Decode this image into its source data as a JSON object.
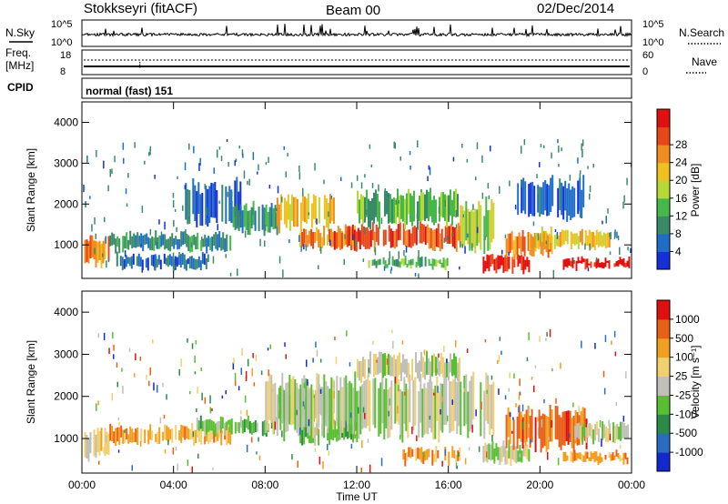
{
  "header": {
    "station": "Stokkseyri (fitACF)",
    "beam": "Beam 00",
    "date": "02/Dec/2014"
  },
  "sky_panel": {
    "left_label": "N.Sky",
    "ytick_top": "10^5",
    "ytick_bottom": "10^0",
    "right_tick_top": "10^5",
    "right_tick_bottom": "10^0",
    "right_label": "N.Search"
  },
  "freq_panel": {
    "left_label_line1": "Freq.",
    "left_label_line2": "[MHz]",
    "ytick_top": "18",
    "ytick_bottom": "8",
    "right_tick_top": "60",
    "right_tick_bottom": "0",
    "right_label": "Nave"
  },
  "cpid_panel": {
    "left_label": "CPID",
    "program": "normal (fast) 151"
  },
  "chart_data": [
    {
      "type": "heatmap",
      "panel": "power",
      "ylabel": "Slant Range [km]",
      "xlabel": "",
      "x_range_hours": [
        0,
        24
      ],
      "y_range_km": [
        180,
        4500
      ],
      "yticks": [
        "1000",
        "2000",
        "3000",
        "4000"
      ],
      "colorbar": {
        "label": "Power [dB]",
        "ticks": [
          "4",
          "8",
          "12",
          "16",
          "20",
          "24",
          "28"
        ],
        "colors": [
          "#1430d8",
          "#1e6ec8",
          "#3a8a6a",
          "#46b84a",
          "#b8d838",
          "#f0c020",
          "#f08c20",
          "#e84818",
          "#e01010"
        ]
      },
      "bands": [
        {
          "t0": 0.1,
          "t1": 1.2,
          "r0": 500,
          "r1": 1200,
          "level": 6
        },
        {
          "t0": 1.2,
          "t1": 6.5,
          "r0": 850,
          "r1": 1300,
          "level": 2
        },
        {
          "t0": 1.5,
          "t1": 5.5,
          "r0": 400,
          "r1": 800,
          "level": 1
        },
        {
          "t0": 4.5,
          "t1": 7.0,
          "r0": 1500,
          "r1": 2500,
          "level": 1
        },
        {
          "t0": 6.5,
          "t1": 8.5,
          "r0": 1300,
          "r1": 2000,
          "level": 2
        },
        {
          "t0": 8.5,
          "t1": 11.0,
          "r0": 1400,
          "r1": 2200,
          "level": 5
        },
        {
          "t0": 9.5,
          "t1": 12.0,
          "r0": 900,
          "r1": 1400,
          "level": 6
        },
        {
          "t0": 11.0,
          "t1": 16.5,
          "r0": 900,
          "r1": 1500,
          "level": 7
        },
        {
          "t0": 12.0,
          "t1": 16.5,
          "r0": 1500,
          "r1": 2300,
          "level": 3
        },
        {
          "t0": 12.5,
          "t1": 16.0,
          "r0": 400,
          "r1": 700,
          "level": 3
        },
        {
          "t0": 16.5,
          "t1": 18.0,
          "r0": 900,
          "r1": 2000,
          "level": 4
        },
        {
          "t0": 17.5,
          "t1": 19.5,
          "r0": 350,
          "r1": 800,
          "level": 8
        },
        {
          "t0": 18.5,
          "t1": 20.5,
          "r0": 700,
          "r1": 1300,
          "level": 6
        },
        {
          "t0": 19.5,
          "t1": 23.0,
          "r0": 900,
          "r1": 1400,
          "level": 5
        },
        {
          "t0": 21.0,
          "t1": 23.9,
          "r0": 400,
          "r1": 700,
          "level": 8
        },
        {
          "t0": 19.0,
          "t1": 22.0,
          "r0": 1700,
          "r1": 2600,
          "level": 1
        }
      ]
    },
    {
      "type": "heatmap",
      "panel": "velocity",
      "ylabel": "Slant Range [km]",
      "xlabel": "Time UT",
      "x_range_hours": [
        0,
        24
      ],
      "y_range_km": [
        180,
        4500
      ],
      "xticks": [
        "00:00",
        "04:00",
        "08:00",
        "12:00",
        "16:00",
        "20:00",
        "00:00"
      ],
      "yticks": [
        "1000",
        "2000",
        "3000",
        "4000"
      ],
      "colorbar": {
        "label": "Velocity [m s⁻¹]",
        "ticks": [
          "1000",
          "500",
          "100",
          "25",
          "-25",
          "-100",
          "-500",
          "-1000"
        ],
        "colors": [
          "#1428d0",
          "#2a6cc0",
          "#2a8a46",
          "#58c030",
          "#c0c0b8",
          "#f0d070",
          "#f0a020",
          "#e86018",
          "#e01010"
        ]
      },
      "bands": [
        {
          "t0": 0.1,
          "t1": 1.2,
          "r0": 500,
          "r1": 1200,
          "level": 5
        },
        {
          "t0": 1.2,
          "t1": 6.5,
          "r0": 850,
          "r1": 1300,
          "level": 6
        },
        {
          "t0": 5.0,
          "t1": 8.5,
          "r0": 1100,
          "r1": 1500,
          "level": 3
        },
        {
          "t0": 8.5,
          "t1": 11.0,
          "r0": 1400,
          "r1": 2200,
          "level": 4
        },
        {
          "t0": 9.5,
          "t1": 12.0,
          "r0": 900,
          "r1": 1400,
          "level": 3
        },
        {
          "t0": 8.0,
          "t1": 18.0,
          "r0": 1100,
          "r1": 2400,
          "level": 4
        },
        {
          "t0": 12.0,
          "t1": 16.5,
          "r0": 2400,
          "r1": 3000,
          "level": 4
        },
        {
          "t0": 14.0,
          "t1": 16.5,
          "r0": 400,
          "r1": 800,
          "level": 6
        },
        {
          "t0": 17.5,
          "t1": 19.5,
          "r0": 400,
          "r1": 900,
          "level": 4
        },
        {
          "t0": 18.5,
          "t1": 22.0,
          "r0": 800,
          "r1": 1700,
          "level": 7
        },
        {
          "t0": 21.5,
          "t1": 23.9,
          "r0": 900,
          "r1": 1400,
          "level": 4
        },
        {
          "t0": 21.0,
          "t1": 23.9,
          "r0": 400,
          "r1": 700,
          "level": 6
        }
      ]
    }
  ]
}
